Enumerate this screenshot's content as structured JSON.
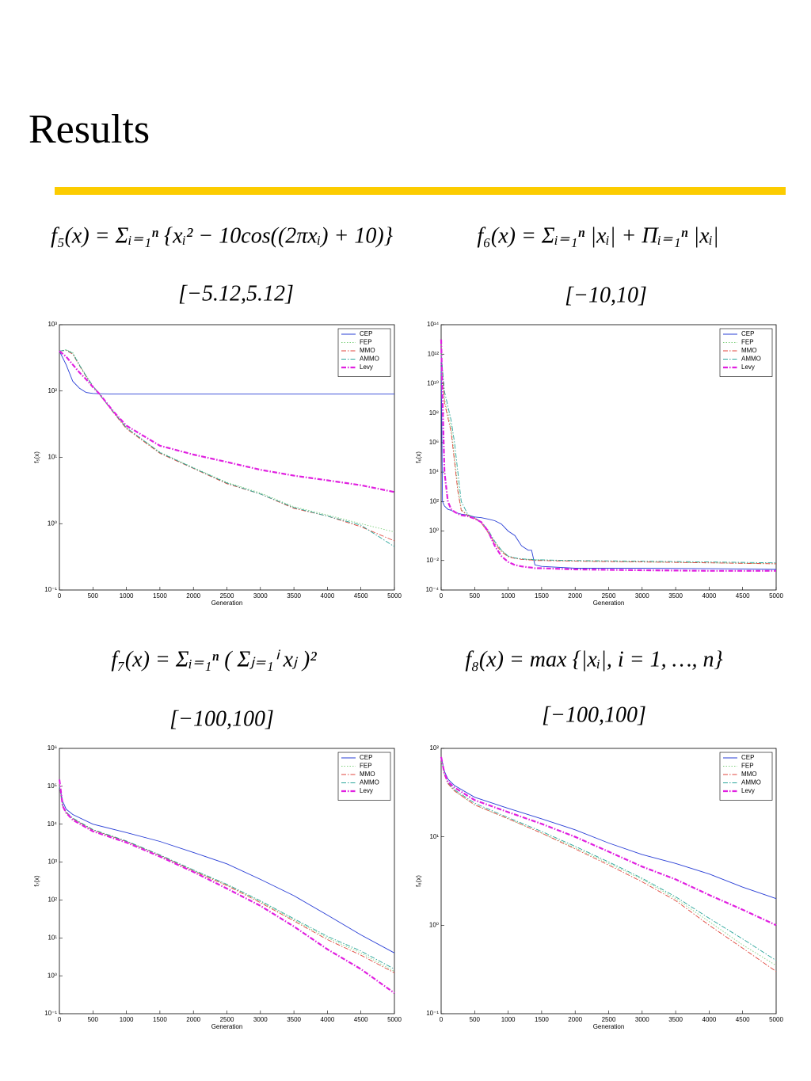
{
  "title": "Results",
  "chart_data": [
    {
      "type": "line",
      "annotations": [
        "f₅(x) = Σᵢ₌₁ⁿ {xᵢ² − 10cos((2πxᵢ) + 10)}",
        "[−5.12,5.12]"
      ],
      "x_label": "Generation",
      "y_label": "f₅(x)",
      "log_y": true,
      "legend": "upper right",
      "xlim": [
        0,
        5000
      ],
      "xticks": [
        0,
        500,
        1000,
        1500,
        2000,
        2500,
        3000,
        3500,
        4000,
        4500,
        5000
      ],
      "ylim": [
        0.1,
        1000
      ],
      "yticks": [
        {
          "value": 0.1,
          "label": "10⁻¹"
        },
        {
          "value": 1,
          "label": "10⁰"
        },
        {
          "value": 10,
          "label": "10¹"
        },
        {
          "value": 100,
          "label": "10²"
        },
        {
          "value": 1000,
          "label": "10³"
        }
      ],
      "x": [
        0,
        100,
        200,
        300,
        400,
        500,
        600,
        800,
        1000,
        1500,
        2000,
        2500,
        3000,
        3500,
        4000,
        4500,
        5000
      ],
      "series": [
        {
          "name": "CEP",
          "color": "#2a3fd6",
          "style": "solid",
          "values": [
            400,
            250,
            140,
            110,
            95,
            92,
            91,
            90,
            90,
            90,
            90,
            90,
            90,
            90,
            90,
            90,
            90
          ]
        },
        {
          "name": "FEP",
          "color": "#7fd07f",
          "style": "dotted",
          "values": [
            400,
            420,
            380,
            250,
            170,
            120,
            90,
            50,
            28,
            12,
            7,
            4.2,
            2.9,
            1.8,
            1.35,
            1.0,
            0.75
          ]
        },
        {
          "name": "MMO",
          "color": "#e0463c",
          "style": "dashdot",
          "values": [
            400,
            410,
            360,
            240,
            165,
            118,
            88,
            48,
            27,
            11.5,
            6.8,
            4.0,
            2.8,
            1.7,
            1.3,
            0.9,
            0.55
          ]
        },
        {
          "name": "AMMO",
          "color": "#2aa59a",
          "style": "dashdot",
          "values": [
            400,
            415,
            370,
            245,
            168,
            119,
            89,
            49,
            28,
            11.8,
            6.9,
            4.1,
            2.8,
            1.75,
            1.3,
            0.95,
            0.45
          ]
        },
        {
          "name": "Levy",
          "color": "#e020e0",
          "style": "bold",
          "values": [
            400,
            330,
            250,
            190,
            150,
            115,
            90,
            50,
            30,
            15,
            11,
            8.5,
            6.5,
            5.3,
            4.5,
            3.8,
            3.0
          ]
        }
      ]
    },
    {
      "type": "line",
      "annotations": [
        "f₆(x) = Σᵢ₌₁ⁿ |xᵢ| + Πᵢ₌₁ⁿ |xᵢ|",
        "[−10,10]"
      ],
      "x_label": "Generation",
      "y_label": "f₆(x)",
      "log_y": true,
      "legend": "upper right",
      "xlim": [
        0,
        5000
      ],
      "xticks": [
        0,
        500,
        1000,
        1500,
        2000,
        2500,
        3000,
        3500,
        4000,
        4500,
        5000
      ],
      "ylim": [
        0.0001,
        100000000000000
      ],
      "yticks": [
        {
          "value": 0.0001,
          "label": "10⁻⁴"
        },
        {
          "value": 0.01,
          "label": "10⁻²"
        },
        {
          "value": 1,
          "label": "10⁰"
        },
        {
          "value": 100,
          "label": "10²"
        },
        {
          "value": 10000,
          "label": "10⁴"
        },
        {
          "value": 1000000,
          "label": "10⁶"
        },
        {
          "value": 100000000,
          "label": "10⁸"
        },
        {
          "value": 10000000000,
          "label": "10¹⁰"
        },
        {
          "value": 1000000000000,
          "label": "10¹²"
        },
        {
          "value": 100000000000000,
          "label": "10¹⁴"
        }
      ],
      "x": [
        0,
        20,
        50,
        100,
        150,
        200,
        250,
        300,
        400,
        500,
        600,
        700,
        800,
        900,
        1000,
        1100,
        1200,
        1300,
        1350,
        1400,
        1500,
        2000,
        3000,
        4000,
        5000
      ],
      "series": [
        {
          "name": "CEP",
          "color": "#2a3fd6",
          "style": "solid",
          "values": [
            1000000000000,
            100,
            50,
            30,
            25,
            20,
            16,
            14,
            12,
            9,
            8,
            6.5,
            5,
            3,
            1,
            0.5,
            0.1,
            0.05,
            0.05,
            0.005,
            0.004,
            0.003,
            0.003,
            0.0028,
            0.0025
          ]
        },
        {
          "name": "FEP",
          "color": "#7fd07f",
          "style": "dotted",
          "values": [
            1000000000000,
            100000000000,
            1000000000,
            100000000,
            10000000,
            100000,
            1000,
            30,
            12,
            8,
            4,
            1,
            0.2,
            0.05,
            0.02,
            0.015,
            0.013,
            0.012,
            0.012,
            0.011,
            0.011,
            0.009,
            0.008,
            0.007,
            0.006
          ]
        },
        {
          "name": "MMO",
          "color": "#e0463c",
          "style": "dashdot",
          "values": [
            1000000000000,
            50000000000,
            500000000,
            50000000,
            5000000,
            50000,
            500,
            25,
            11,
            7.5,
            3.5,
            0.8,
            0.15,
            0.04,
            0.018,
            0.014,
            0.012,
            0.011,
            0.011,
            0.01,
            0.01,
            0.009,
            0.008,
            0.007,
            0.006
          ]
        },
        {
          "name": "AMMO",
          "color": "#2aa59a",
          "style": "dashdot",
          "values": [
            1000000000000,
            100000000000,
            3000000000,
            300000000,
            30000000,
            1000000,
            10000,
            100,
            13,
            8,
            4,
            1.2,
            0.2,
            0.05,
            0.02,
            0.015,
            0.013,
            0.012,
            0.012,
            0.011,
            0.011,
            0.01,
            0.009,
            0.008,
            0.007
          ]
        },
        {
          "name": "Levy",
          "color": "#e020e0",
          "style": "bold",
          "values": [
            10000000000000,
            1000000000,
            10000,
            100,
            30,
            20,
            15,
            12,
            10,
            7,
            4,
            1,
            0.1,
            0.02,
            0.008,
            0.005,
            0.004,
            0.0035,
            0.0033,
            0.003,
            0.003,
            0.0025,
            0.0022,
            0.002,
            0.002
          ]
        }
      ]
    },
    {
      "type": "line",
      "annotations": [
        "f₇(x) = Σᵢ₌₁ⁿ ( Σⱼ₌₁ⁱ xⱼ )²",
        "[−100,100]"
      ],
      "x_label": "Generation",
      "y_label": "f₇(x)",
      "log_y": true,
      "legend": "upper right",
      "xlim": [
        0,
        5000
      ],
      "xticks": [
        0,
        500,
        1000,
        1500,
        2000,
        2500,
        3000,
        3500,
        4000,
        4500,
        5000
      ],
      "ylim": [
        0.1,
        1000000
      ],
      "yticks": [
        {
          "value": 0.1,
          "label": "10⁻¹"
        },
        {
          "value": 1,
          "label": "10⁰"
        },
        {
          "value": 10,
          "label": "10¹"
        },
        {
          "value": 100,
          "label": "10²"
        },
        {
          "value": 1000,
          "label": "10³"
        },
        {
          "value": 10000,
          "label": "10⁴"
        },
        {
          "value": 100000,
          "label": "10⁵"
        },
        {
          "value": 1000000,
          "label": "10⁶"
        }
      ],
      "x": [
        0,
        50,
        100,
        200,
        500,
        1000,
        1500,
        2000,
        2500,
        3000,
        3500,
        4000,
        4500,
        5000
      ],
      "series": [
        {
          "name": "CEP",
          "color": "#2a3fd6",
          "style": "solid",
          "values": [
            100000,
            40000,
            25000,
            18000,
            10000,
            6000,
            3500,
            1800,
            900,
            350,
            130,
            40,
            12,
            4
          ]
        },
        {
          "name": "FEP",
          "color": "#7fd07f",
          "style": "dotted",
          "values": [
            100000,
            30000,
            20000,
            14000,
            7000,
            3500,
            1500,
            600,
            250,
            90,
            30,
            10,
            4,
            1.3
          ]
        },
        {
          "name": "MMO",
          "color": "#e0463c",
          "style": "dashdot",
          "values": [
            100000,
            30000,
            20000,
            14000,
            7000,
            3500,
            1500,
            580,
            240,
            85,
            28,
            9,
            3.5,
            1.2
          ]
        },
        {
          "name": "AMMO",
          "color": "#2aa59a",
          "style": "dashdot",
          "values": [
            100000,
            31000,
            21000,
            14500,
            7200,
            3600,
            1550,
            620,
            260,
            95,
            32,
            11,
            4.5,
            1.5
          ]
        },
        {
          "name": "Levy",
          "color": "#e020e0",
          "style": "bold",
          "values": [
            150000,
            30000,
            20000,
            13000,
            6500,
            3300,
            1400,
            550,
            200,
            70,
            20,
            5,
            1.5,
            0.35
          ]
        }
      ]
    },
    {
      "type": "line",
      "annotations": [
        "f₈(x) = max {|xᵢ|, i = 1, …, n}",
        "[−100,100]"
      ],
      "x_label": "Generation",
      "y_label": "f₈(x)",
      "log_y": true,
      "legend": "upper right",
      "xlim": [
        0,
        5000
      ],
      "xticks": [
        0,
        500,
        1000,
        1500,
        2000,
        2500,
        3000,
        3500,
        4000,
        4500,
        5000
      ],
      "ylim": [
        0.1,
        100
      ],
      "yticks": [
        {
          "value": 0.1,
          "label": "10⁻¹"
        },
        {
          "value": 1,
          "label": "10⁰"
        },
        {
          "value": 10,
          "label": "10¹"
        },
        {
          "value": 100,
          "label": "10²"
        }
      ],
      "x": [
        0,
        50,
        100,
        200,
        500,
        1000,
        1500,
        2000,
        2500,
        3000,
        3500,
        4000,
        4500,
        5000
      ],
      "series": [
        {
          "name": "CEP",
          "color": "#2a3fd6",
          "style": "solid",
          "values": [
            80,
            55,
            45,
            38,
            28,
            21,
            16,
            12,
            8.5,
            6.3,
            5,
            3.8,
            2.7,
            2.0
          ]
        },
        {
          "name": "FEP",
          "color": "#7fd07f",
          "style": "dotted",
          "values": [
            80,
            50,
            40,
            33,
            23,
            16,
            11,
            7.5,
            5,
            3.3,
            2,
            1.1,
            0.6,
            0.35
          ]
        },
        {
          "name": "MMO",
          "color": "#e0463c",
          "style": "dashdot",
          "values": [
            80,
            50,
            40,
            33,
            23,
            16,
            11,
            7.3,
            4.8,
            3.1,
            1.9,
            1.0,
            0.55,
            0.3
          ]
        },
        {
          "name": "AMMO",
          "color": "#2aa59a",
          "style": "dashdot",
          "values": [
            80,
            51,
            41,
            34,
            24,
            16.5,
            11.5,
            7.8,
            5.2,
            3.4,
            2.1,
            1.2,
            0.7,
            0.4
          ]
        },
        {
          "name": "Levy",
          "color": "#e020e0",
          "style": "bold",
          "values": [
            80,
            52,
            42,
            36,
            26,
            19,
            14,
            10,
            6.8,
            4.6,
            3.3,
            2.2,
            1.5,
            1.0
          ]
        }
      ]
    }
  ]
}
